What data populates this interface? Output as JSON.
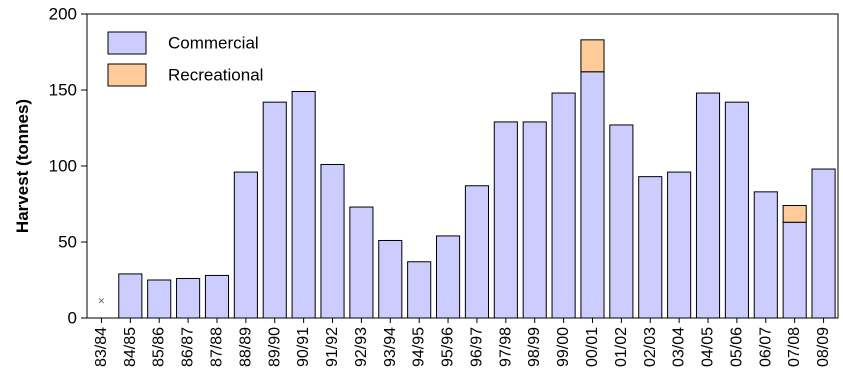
{
  "chart_data": {
    "type": "bar",
    "stacked": true,
    "title": "",
    "xlabel": "",
    "ylabel": "Harvest (tonnes)",
    "ylim": [
      0,
      200
    ],
    "yticks": [
      0,
      50,
      100,
      150,
      200
    ],
    "grid": false,
    "legend_position": "top-left",
    "categories": [
      "83/84",
      "84/85",
      "85/86",
      "86/87",
      "87/88",
      "88/89",
      "89/90",
      "90/91",
      "91/92",
      "92/93",
      "93/94",
      "94/95",
      "95/96",
      "96/97",
      "97/98",
      "98/99",
      "99/00",
      "00/01",
      "01/02",
      "02/03",
      "03/04",
      "04/05",
      "05/06",
      "06/07",
      "07/08",
      "08/09"
    ],
    "series": [
      {
        "name": "Commercial",
        "color": "#ccccff",
        "values": [
          0,
          29,
          25,
          26,
          28,
          96,
          142,
          149,
          101,
          73,
          51,
          37,
          54,
          87,
          129,
          129,
          148,
          162,
          127,
          93,
          96,
          148,
          142,
          83,
          63,
          98
        ]
      },
      {
        "name": "Recreational",
        "color": "#ffcc99",
        "values": [
          0,
          0,
          0,
          0,
          0,
          0,
          0,
          0,
          0,
          0,
          0,
          0,
          0,
          0,
          0,
          0,
          0,
          21,
          0,
          0,
          0,
          0,
          0,
          0,
          11,
          0
        ]
      }
    ],
    "annotations": [
      {
        "category": "83/84",
        "y": 11,
        "text": "×"
      }
    ]
  }
}
